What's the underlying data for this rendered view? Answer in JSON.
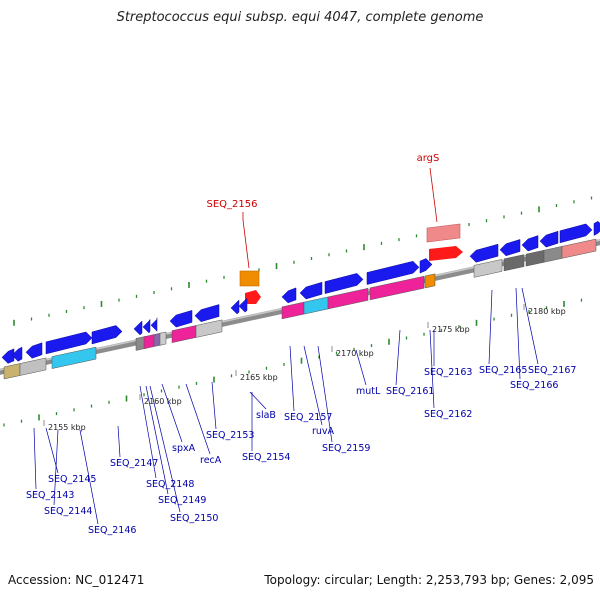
{
  "title": "Streptococcus equi subsp. equi 4047, complete genome",
  "footer": {
    "accession": "Accession: NC_012471",
    "summary": "Topology: circular; Length: 2,253,793 bp; Genes: 2,095"
  },
  "colors": {
    "backbone": "#8a8a8a",
    "tick": "#2e8b2e",
    "gene_label": "#0000aa",
    "highlight_label": "#cc0000"
  },
  "scale_labels": [
    "2155 kbp",
    "2160 kbp",
    "2165 kbp",
    "2170 kbp",
    "2175 kbp",
    "2180 kbp"
  ],
  "highlighted_genes": [
    "SEQ_2156",
    "argS"
  ],
  "gene_labels": [
    "SEQ_2143",
    "SEQ_2144",
    "SEQ_2145",
    "SEQ_2146",
    "SEQ_2147",
    "SEQ_2148",
    "SEQ_2149",
    "SEQ_2150",
    "spxA",
    "recA",
    "SEQ_2153",
    "SEQ_2154",
    "slaB",
    "SEQ_2157",
    "ruvA",
    "SEQ_2159",
    "mutL",
    "SEQ_2161",
    "SEQ_2162",
    "SEQ_2163",
    "SEQ_2165",
    "SEQ_2166",
    "SEQ_2167"
  ]
}
